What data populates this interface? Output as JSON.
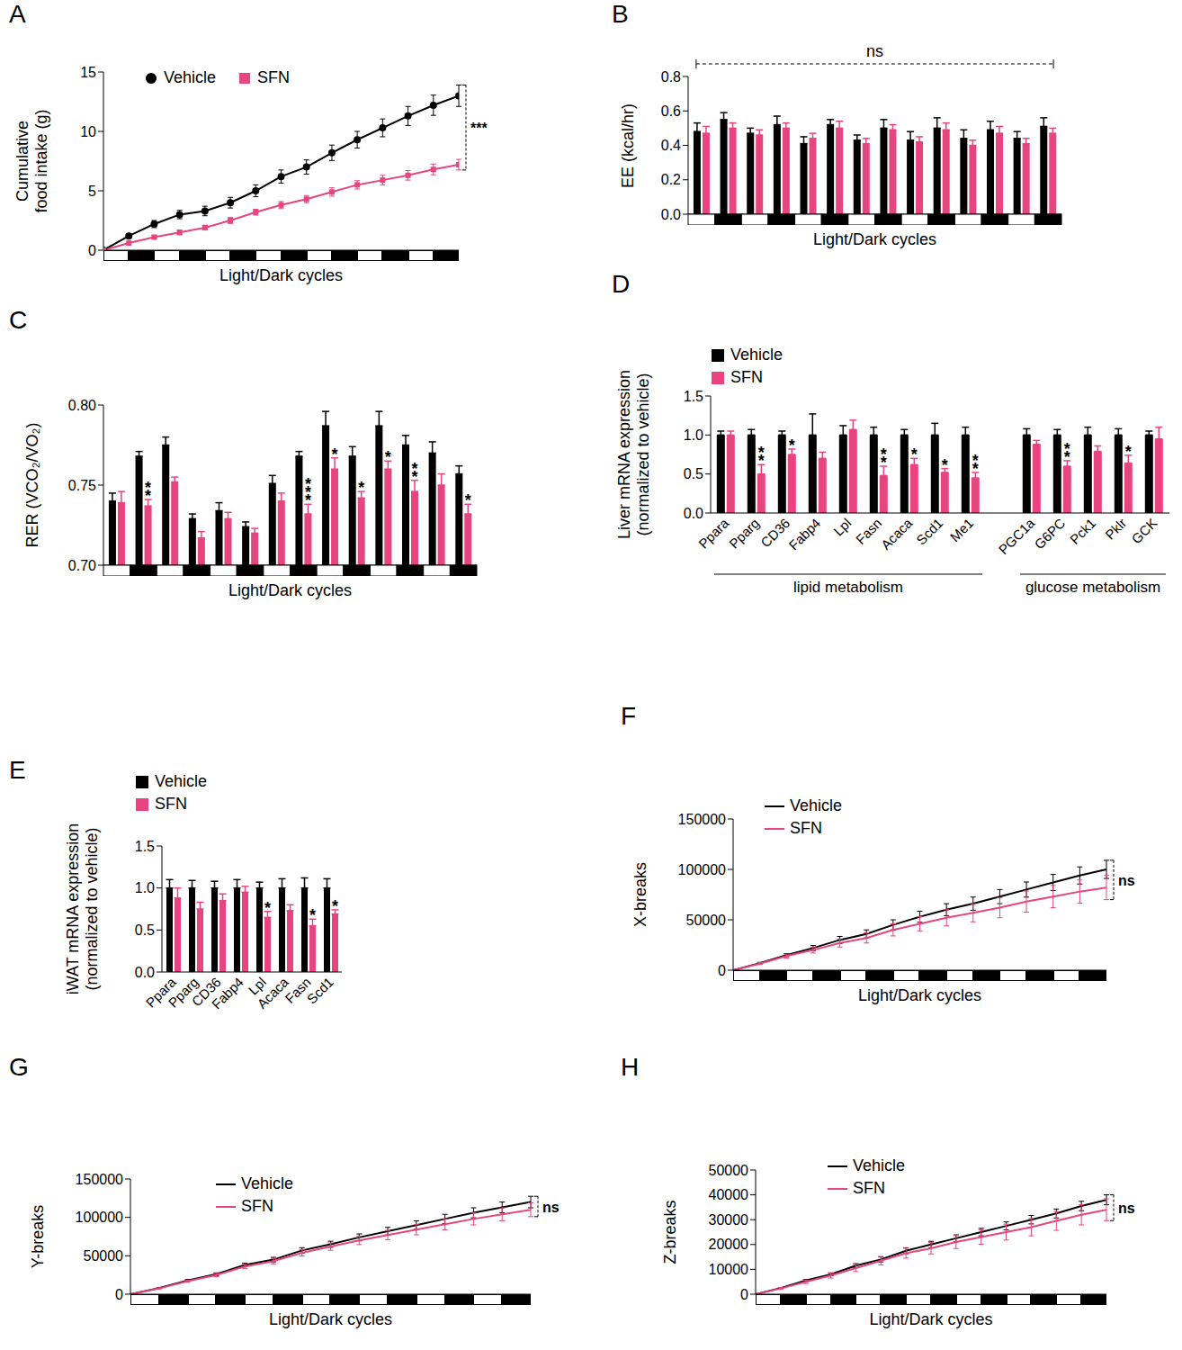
{
  "chart_data": [
    {
      "title": "A",
      "type": "line",
      "legend": "upper left",
      "annotation": "***",
      "x_label": "Light/Dark cycles",
      "y_label": [
        "Cumulative",
        "food intake (g)"
      ],
      "categories": [
        null,
        null,
        null,
        null,
        null,
        null,
        null,
        null,
        null,
        null,
        null,
        null,
        null,
        null,
        null
      ],
      "ylim": [
        0,
        15
      ],
      "yticks": [
        0,
        5,
        10,
        15
      ],
      "series": [
        {
          "name": "Vehicle",
          "color": "#000000",
          "marker": "circle",
          "values": [
            0,
            1.2,
            2.2,
            3.0,
            3.3,
            4.0,
            5.0,
            6.2,
            7.0,
            8.2,
            9.3,
            10.3,
            11.3,
            12.2,
            13.0
          ],
          "errors": [
            0,
            0.2,
            0.3,
            0.35,
            0.4,
            0.45,
            0.5,
            0.55,
            0.6,
            0.65,
            0.7,
            0.75,
            0.8,
            0.85,
            0.9
          ]
        },
        {
          "name": "SFN",
          "color": "#e6457f",
          "marker": "square",
          "values": [
            0,
            0.6,
            1.1,
            1.5,
            1.9,
            2.5,
            3.2,
            3.8,
            4.3,
            4.9,
            5.5,
            5.9,
            6.3,
            6.8,
            7.2
          ],
          "errors": [
            0,
            0.1,
            0.15,
            0.2,
            0.2,
            0.25,
            0.25,
            0.3,
            0.3,
            0.35,
            0.35,
            0.4,
            0.4,
            0.45,
            0.45
          ]
        }
      ]
    },
    {
      "title": "B",
      "type": "bar",
      "annotation": "ns",
      "x_label": "Light/Dark cycles",
      "y_label": "EE (kcal/hr)",
      "categories": [
        null,
        null,
        null,
        null,
        null,
        null,
        null,
        null,
        null,
        null,
        null,
        null,
        null,
        null
      ],
      "ylim": [
        0,
        0.8
      ],
      "yticks": [
        {
          "value": 0,
          "label": "0.0"
        },
        0.2,
        0.4,
        0.6,
        0.8
      ],
      "series": [
        {
          "name": "Vehicle",
          "color": "#000000",
          "values": [
            0.48,
            0.55,
            0.47,
            0.52,
            0.41,
            0.52,
            0.43,
            0.5,
            0.43,
            0.5,
            0.44,
            0.49,
            0.44,
            0.51
          ],
          "errors": [
            0.05,
            0.04,
            0.03,
            0.05,
            0.04,
            0.03,
            0.03,
            0.05,
            0.05,
            0.06,
            0.05,
            0.05,
            0.04,
            0.05
          ]
        },
        {
          "name": "SFN",
          "color": "#e6457f",
          "values": [
            0.47,
            0.5,
            0.46,
            0.5,
            0.44,
            0.5,
            0.41,
            0.49,
            0.42,
            0.49,
            0.4,
            0.47,
            0.41,
            0.47
          ],
          "errors": [
            0.04,
            0.03,
            0.03,
            0.03,
            0.03,
            0.04,
            0.03,
            0.03,
            0.03,
            0.04,
            0.03,
            0.04,
            0.03,
            0.03
          ]
        }
      ]
    },
    {
      "title": "C",
      "type": "bar",
      "x_label": "Light/Dark cycles",
      "y_label": "RER (VCO₂/VO₂)",
      "categories": [
        null,
        null,
        null,
        null,
        null,
        null,
        null,
        null,
        null,
        null,
        null,
        null,
        null,
        null
      ],
      "ylim": [
        0.7,
        0.8
      ],
      "yticks": [
        {
          "value": 0.7,
          "label": "0.70"
        },
        {
          "value": 0.75,
          "label": "0.75"
        },
        {
          "value": 0.8,
          "label": "0.80"
        }
      ],
      "series": [
        {
          "name": "Vehicle",
          "color": "#000000",
          "values": [
            0.74,
            0.768,
            0.775,
            0.729,
            0.734,
            0.724,
            0.751,
            0.768,
            0.787,
            0.768,
            0.787,
            0.775,
            0.77,
            0.757
          ],
          "errors": [
            0.005,
            0.003,
            0.005,
            0.003,
            0.005,
            0.003,
            0.005,
            0.003,
            0.009,
            0.006,
            0.009,
            0.006,
            0.007,
            0.005
          ]
        },
        {
          "name": "SFN",
          "color": "#e6457f",
          "values": [
            0.739,
            0.737,
            0.752,
            0.717,
            0.729,
            0.72,
            0.74,
            0.732,
            0.76,
            0.742,
            0.76,
            0.746,
            0.75,
            0.732
          ],
          "errors": [
            0.007,
            0.004,
            0.003,
            0.004,
            0.004,
            0.003,
            0.005,
            0.006,
            0.007,
            0.004,
            0.005,
            0.007,
            0.007,
            0.006
          ],
          "significance": [
            null,
            "**",
            null,
            null,
            null,
            null,
            null,
            "***",
            "*",
            "*",
            "*",
            "**",
            null,
            "*"
          ]
        }
      ]
    },
    {
      "title": "D",
      "type": "bar",
      "legend": "upper left",
      "y_label": [
        "Liver mRNA expression",
        "(normalized to vehicle)"
      ],
      "categories": [
        "Ppara",
        "Pparg",
        "CD36",
        "Fabp4",
        "Lpl",
        "Fasn",
        "Acaca",
        "Scd1",
        "Me1",
        null,
        "PGC1a",
        "G6PC",
        "Pck1",
        "Pklr",
        "GCK"
      ],
      "groups": [
        {
          "label": "lipid metabolism",
          "members": [
            "Ppara",
            "Pparg",
            "CD36",
            "Fabp4",
            "Lpl",
            "Fasn",
            "Acaca",
            "Scd1",
            "Me1"
          ]
        },
        {
          "label": "glucose metabolism",
          "members": [
            "PGC1a",
            "G6PC",
            "Pck1",
            "Pklr",
            "GCK"
          ]
        }
      ],
      "ylim": [
        0,
        1.5
      ],
      "yticks": [
        {
          "value": 0,
          "label": "0.0"
        },
        {
          "value": 0.5,
          "label": "0.5"
        },
        {
          "value": 1,
          "label": "1.0"
        },
        {
          "value": 1.5,
          "label": "1.5"
        }
      ],
      "series": [
        {
          "name": "Vehicle",
          "color": "#000000",
          "values": [
            1.0,
            1.0,
            1.0,
            1.0,
            1.0,
            1.0,
            1.0,
            1.0,
            1.0,
            null,
            1.0,
            1.0,
            1.0,
            1.0,
            1.0
          ],
          "errors": [
            0.05,
            0.07,
            0.05,
            0.27,
            0.12,
            0.1,
            0.07,
            0.15,
            0.1,
            null,
            0.08,
            0.07,
            0.1,
            0.08,
            0.05
          ]
        },
        {
          "name": "SFN",
          "color": "#e6457f",
          "values": [
            1.0,
            0.5,
            0.75,
            0.7,
            1.07,
            0.48,
            0.62,
            0.52,
            0.45,
            null,
            0.88,
            0.6,
            0.79,
            0.64,
            0.95
          ],
          "errors": [
            0.05,
            0.12,
            0.07,
            0.08,
            0.12,
            0.12,
            0.08,
            0.05,
            0.07,
            null,
            0.05,
            0.07,
            0.07,
            0.1,
            0.15
          ],
          "significance": [
            null,
            "**",
            "*",
            null,
            null,
            "**",
            "*",
            "*",
            "**",
            null,
            null,
            "**",
            null,
            "*",
            null
          ]
        }
      ]
    },
    {
      "title": "E",
      "type": "bar",
      "legend": "upper left",
      "y_label": [
        "iWAT mRNA expression",
        "(normalized to vehicle)"
      ],
      "categories": [
        "Ppara",
        "Pparg",
        "CD36",
        "Fabp4",
        "Lpl",
        "Acaca",
        "Fasn",
        "Scd1"
      ],
      "ylim": [
        0,
        1.5
      ],
      "yticks": [
        {
          "value": 0,
          "label": "0.0"
        },
        {
          "value": 0.5,
          "label": "0.5"
        },
        {
          "value": 1,
          "label": "1.0"
        },
        {
          "value": 1.5,
          "label": "1.5"
        }
      ],
      "series": [
        {
          "name": "Vehicle",
          "color": "#000000",
          "values": [
            1.0,
            1.0,
            1.0,
            1.0,
            1.0,
            1.0,
            1.0,
            1.0
          ],
          "errors": [
            0.1,
            0.09,
            0.08,
            0.1,
            0.07,
            0.11,
            0.12,
            0.11
          ]
        },
        {
          "name": "SFN",
          "color": "#e6457f",
          "values": [
            0.88,
            0.75,
            0.85,
            0.95,
            0.65,
            0.73,
            0.55,
            0.69
          ],
          "errors": [
            0.12,
            0.08,
            0.08,
            0.07,
            0.07,
            0.07,
            0.08,
            0.05
          ],
          "significance": [
            null,
            null,
            null,
            null,
            "*",
            null,
            "*",
            "*"
          ]
        }
      ]
    },
    {
      "title": "F",
      "type": "line",
      "legend": "upper left",
      "annotation": "ns",
      "x_label": "Light/Dark cycles",
      "y_label": "X-breaks",
      "categories": [
        null,
        null,
        null,
        null,
        null,
        null,
        null,
        null,
        null,
        null,
        null,
        null,
        null,
        null,
        null
      ],
      "ylim": [
        0,
        150000
      ],
      "yticks": [
        0,
        50000,
        100000,
        150000
      ],
      "series": [
        {
          "name": "Vehicle",
          "color": "#000000",
          "values": [
            0,
            7000,
            15000,
            22000,
            30000,
            36000,
            45000,
            53000,
            60000,
            66000,
            73000,
            80000,
            87000,
            94000,
            100000
          ],
          "errors": [
            0,
            800,
            1500,
            2500,
            3500,
            4000,
            5000,
            5500,
            6000,
            6500,
            7000,
            7500,
            8000,
            8500,
            9000
          ]
        },
        {
          "name": "SFN",
          "color": "#e6457f",
          "values": [
            0,
            6500,
            14000,
            20000,
            27000,
            32000,
            40000,
            46000,
            52000,
            57000,
            62000,
            68000,
            73000,
            78000,
            82000
          ],
          "errors": [
            0,
            1000,
            2000,
            3000,
            4000,
            5000,
            6000,
            7000,
            8000,
            9000,
            10000,
            10500,
            11000,
            11500,
            12000
          ]
        }
      ]
    },
    {
      "title": "G",
      "type": "line",
      "legend": "upper left",
      "annotation": "ns",
      "x_label": "Light/Dark cycles",
      "y_label": "Y-breaks",
      "categories": [
        null,
        null,
        null,
        null,
        null,
        null,
        null,
        null,
        null,
        null,
        null,
        null,
        null,
        null,
        null
      ],
      "ylim": [
        0,
        150000
      ],
      "yticks": [
        0,
        50000,
        100000,
        150000
      ],
      "series": [
        {
          "name": "Vehicle",
          "color": "#000000",
          "values": [
            0,
            8000,
            18000,
            26000,
            38000,
            45000,
            57000,
            65000,
            74000,
            82000,
            90000,
            98000,
            106000,
            113000,
            120000
          ],
          "errors": [
            0,
            600,
            1200,
            1800,
            2400,
            3000,
            3500,
            4000,
            4500,
            5000,
            5500,
            6000,
            6500,
            7000,
            7500
          ]
        },
        {
          "name": "SFN",
          "color": "#e6457f",
          "values": [
            0,
            7500,
            17000,
            25000,
            36000,
            43000,
            54000,
            62000,
            70000,
            77000,
            84000,
            91000,
            98000,
            104000,
            110000
          ],
          "errors": [
            0,
            700,
            1400,
            2100,
            2800,
            3500,
            4200,
            4800,
            5400,
            6000,
            6600,
            7200,
            7800,
            8400,
            9000
          ]
        }
      ]
    },
    {
      "title": "H",
      "type": "line",
      "legend": "upper left",
      "annotation": "ns",
      "x_label": "Light/Dark cycles",
      "y_label": "Z-breaks",
      "categories": [
        null,
        null,
        null,
        null,
        null,
        null,
        null,
        null,
        null,
        null,
        null,
        null,
        null,
        null,
        null
      ],
      "ylim": [
        0,
        50000
      ],
      "yticks": [
        0,
        10000,
        20000,
        30000,
        40000,
        50000
      ],
      "series": [
        {
          "name": "Vehicle",
          "color": "#000000",
          "values": [
            0,
            2500,
            5500,
            8000,
            11500,
            14000,
            17500,
            20000,
            22500,
            25000,
            27500,
            30000,
            32500,
            35500,
            38000
          ],
          "errors": [
            0,
            200,
            400,
            600,
            800,
            1000,
            1200,
            1300,
            1400,
            1500,
            1600,
            1700,
            1800,
            1900,
            2000
          ]
        },
        {
          "name": "SFN",
          "color": "#e6457f",
          "values": [
            0,
            2300,
            5000,
            7500,
            10500,
            13500,
            16500,
            18500,
            21000,
            23000,
            25000,
            27000,
            29500,
            32000,
            34000
          ],
          "errors": [
            0,
            400,
            700,
            1000,
            1400,
            1700,
            2000,
            2300,
            2600,
            2900,
            3200,
            3500,
            3800,
            4100,
            4400
          ]
        }
      ]
    }
  ]
}
